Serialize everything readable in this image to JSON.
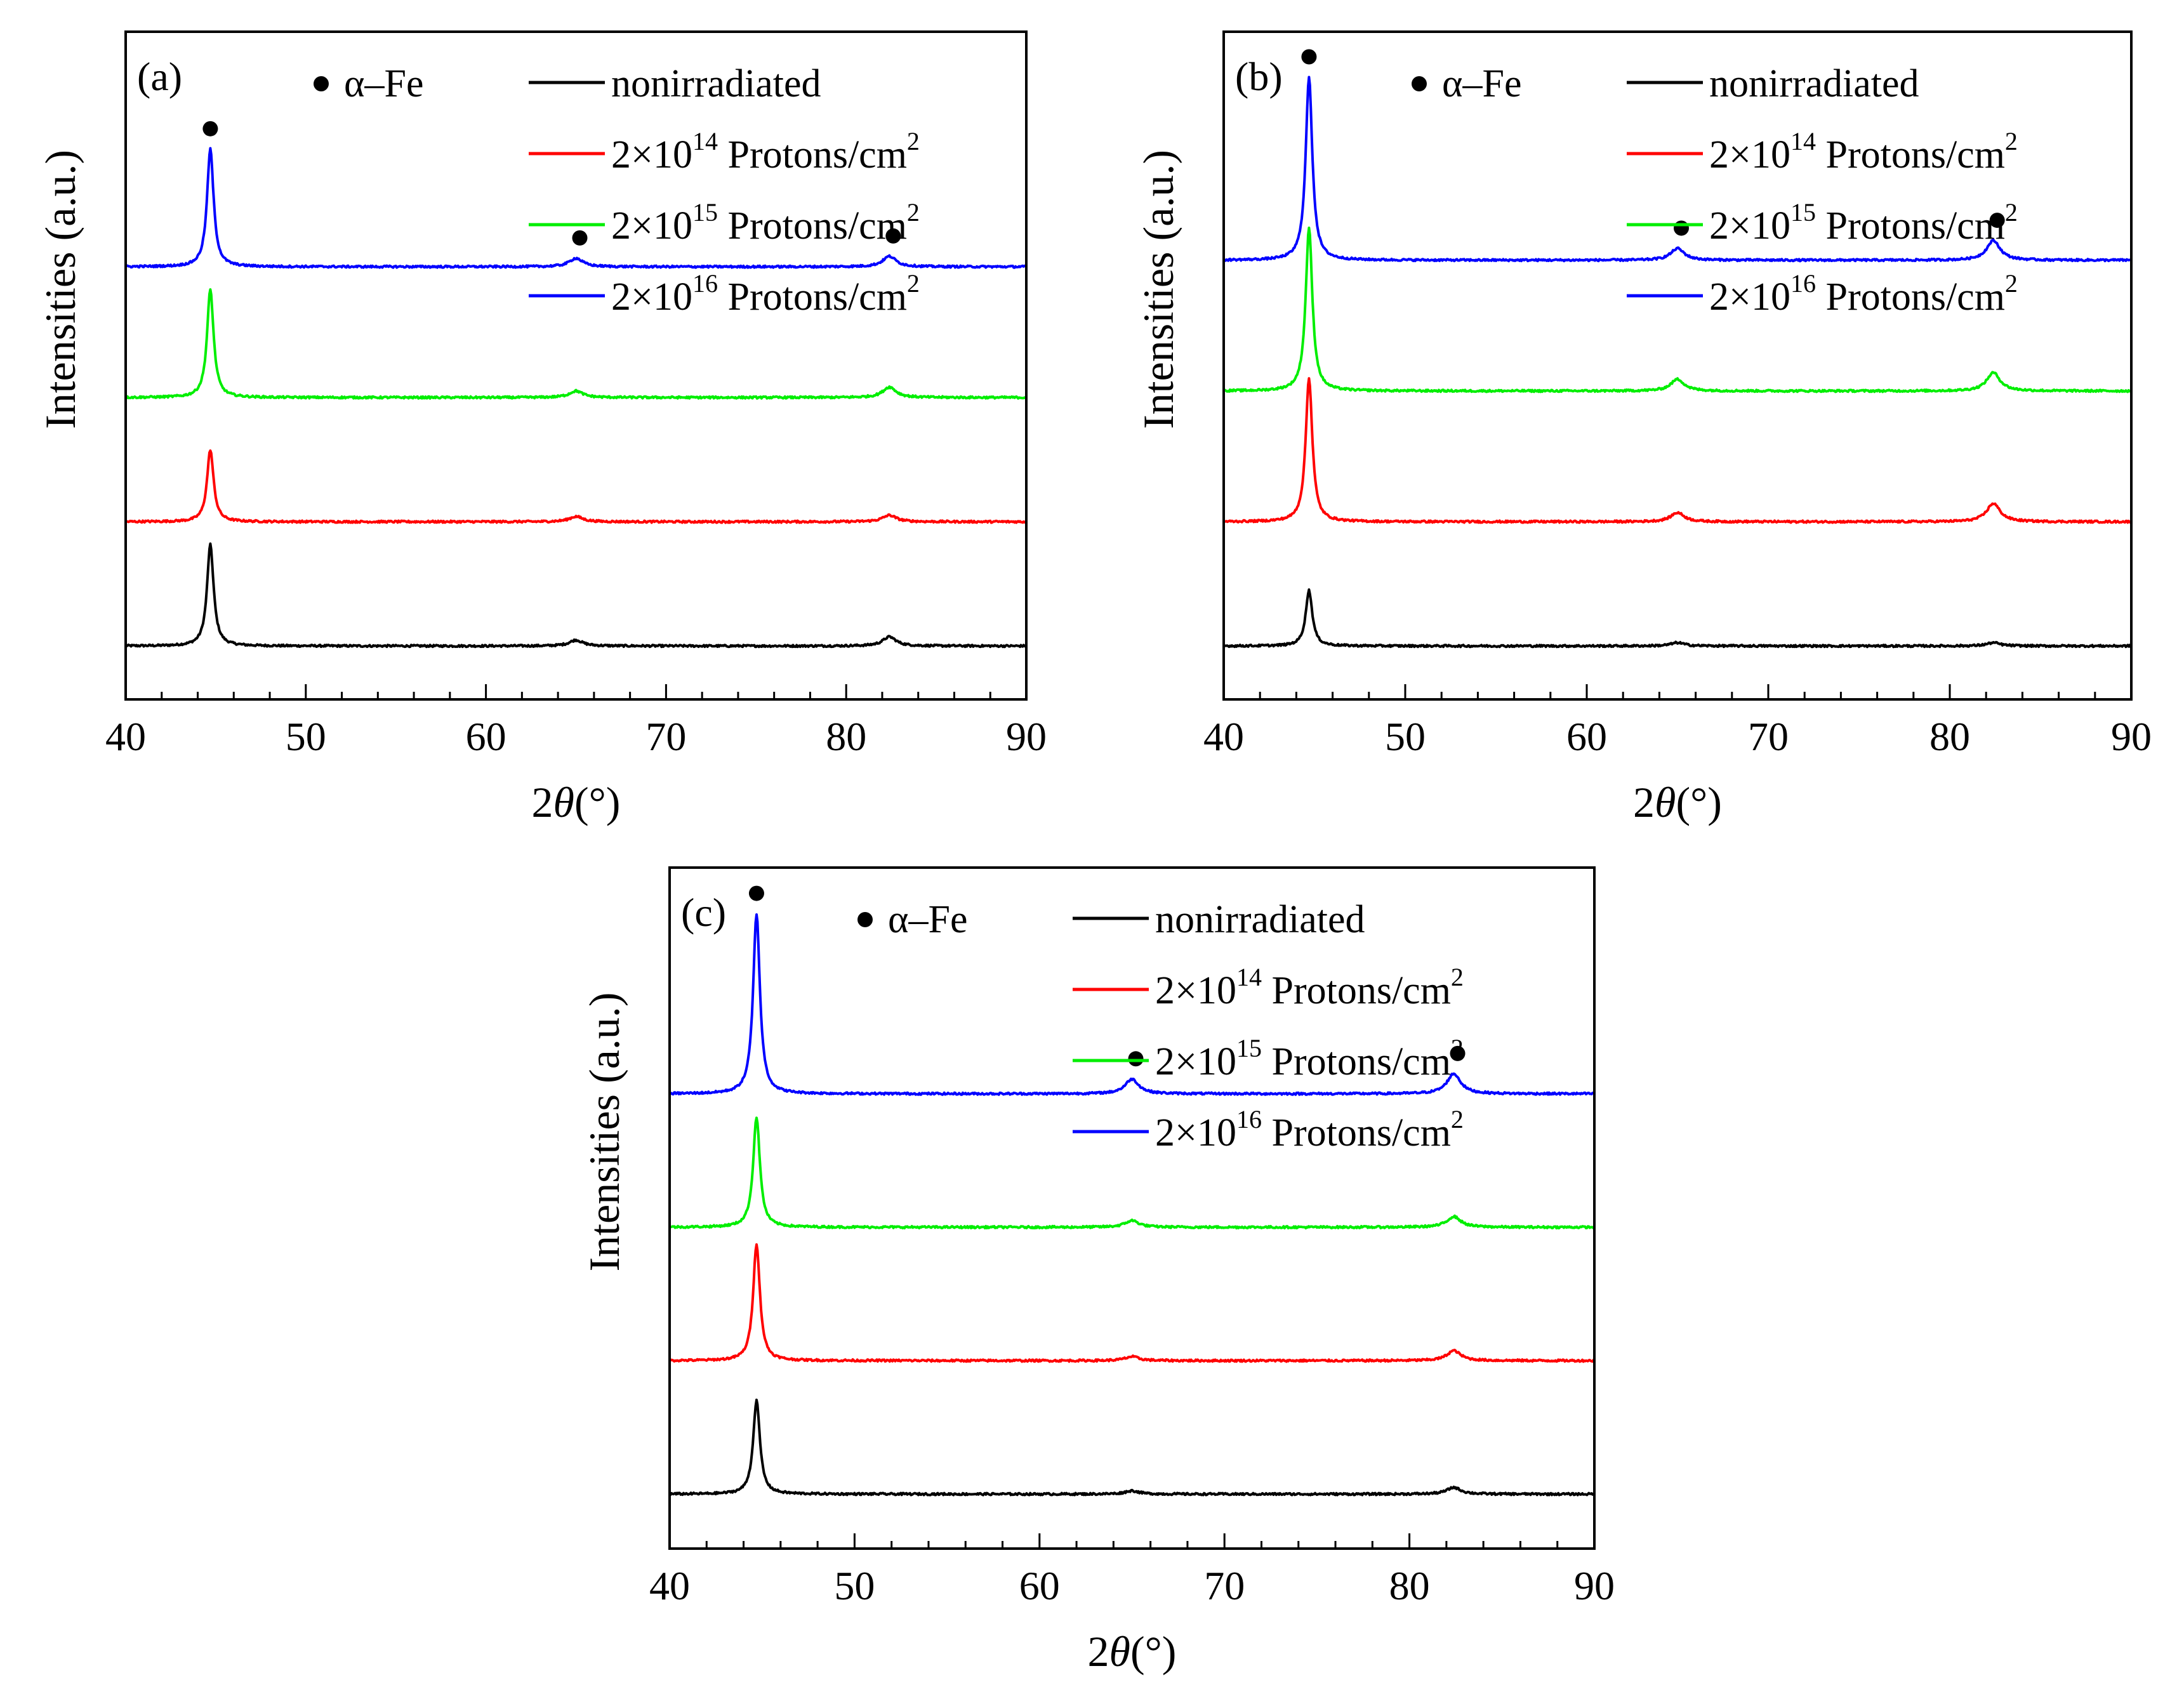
{
  "chart_data": [
    {
      "panel": "(a)",
      "type": "line",
      "xlabel_prefix": "2",
      "xlabel_symbol": "θ",
      "xlabel_unit": "(°)",
      "ylabel": "Intensities (a.u.)",
      "xlim": [
        40,
        90
      ],
      "xticks": [
        40,
        50,
        60,
        70,
        80,
        90
      ],
      "marker_label": "α–Fe",
      "peak_positions": [
        44.7,
        65.0,
        82.4
      ],
      "series": [
        {
          "name": "nonirradiated",
          "color": "#000000",
          "offset": 0.0,
          "peaks": [
            1.55,
            0.09,
            0.14
          ]
        },
        {
          "name": "2×10^14 Protons/cm^2",
          "color": "#ff0000",
          "offset": 1.9,
          "peaks": [
            1.1,
            0.08,
            0.1
          ]
        },
        {
          "name": "2×10^15 Protons/cm^2",
          "color": "#00ee00",
          "offset": 3.8,
          "peaks": [
            1.65,
            0.1,
            0.16
          ]
        },
        {
          "name": "2×10^16 Protons/cm^2",
          "color": "#0000ff",
          "offset": 5.8,
          "peaks": [
            1.8,
            0.13,
            0.16
          ]
        }
      ]
    },
    {
      "panel": "(b)",
      "type": "line",
      "xlabel_prefix": "2",
      "xlabel_symbol": "θ",
      "xlabel_unit": "(°)",
      "ylabel": "Intensities (a.u.)",
      "xlim": [
        40,
        90
      ],
      "xticks": [
        40,
        50,
        60,
        70,
        80,
        90
      ],
      "marker_label": "α–Fe",
      "peak_positions": [
        44.7,
        65.0,
        82.4
      ],
      "series": [
        {
          "name": "nonirradiated",
          "color": "#000000",
          "offset": 0.0,
          "peaks": [
            0.85,
            0.05,
            0.05
          ]
        },
        {
          "name": "2×10^14 Protons/cm^2",
          "color": "#ff0000",
          "offset": 1.9,
          "peaks": [
            2.2,
            0.14,
            0.28
          ]
        },
        {
          "name": "2×10^15 Protons/cm^2",
          "color": "#00ee00",
          "offset": 3.9,
          "peaks": [
            2.5,
            0.18,
            0.28
          ]
        },
        {
          "name": "2×10^16 Protons/cm^2",
          "color": "#0000ff",
          "offset": 5.9,
          "peaks": [
            2.8,
            0.18,
            0.3
          ]
        }
      ]
    },
    {
      "panel": "(c)",
      "type": "line",
      "xlabel_prefix": "2",
      "xlabel_symbol": "θ",
      "xlabel_unit": "(°)",
      "ylabel": "Intensities (a.u.)",
      "xlim": [
        40,
        90
      ],
      "xticks": [
        40,
        50,
        60,
        70,
        80,
        90
      ],
      "marker_label": "α–Fe",
      "peak_positions": [
        44.7,
        65.0,
        82.4
      ],
      "series": [
        {
          "name": "nonirradiated",
          "color": "#000000",
          "offset": 0.0,
          "peaks": [
            1.4,
            0.05,
            0.1
          ]
        },
        {
          "name": "2×10^14 Protons/cm^2",
          "color": "#ff0000",
          "offset": 2.0,
          "peaks": [
            1.75,
            0.06,
            0.15
          ]
        },
        {
          "name": "2×10^15 Protons/cm^2",
          "color": "#00ee00",
          "offset": 4.0,
          "peaks": [
            1.65,
            0.1,
            0.16
          ]
        },
        {
          "name": "2×10^16 Protons/cm^2",
          "color": "#0000ff",
          "offset": 6.0,
          "peaks": [
            2.7,
            0.22,
            0.3
          ]
        }
      ]
    }
  ],
  "legend_entries": [
    {
      "base": "nonirradiated",
      "exp": "",
      "tail": "",
      "tail_sup": ""
    },
    {
      "base": "2×10",
      "exp": "14",
      "tail": " Protons/cm",
      "tail_sup": "2"
    },
    {
      "base": "2×10",
      "exp": "15",
      "tail": " Protons/cm",
      "tail_sup": "2"
    },
    {
      "base": "2×10",
      "exp": "16",
      "tail": " Protons/cm",
      "tail_sup": "2"
    }
  ]
}
